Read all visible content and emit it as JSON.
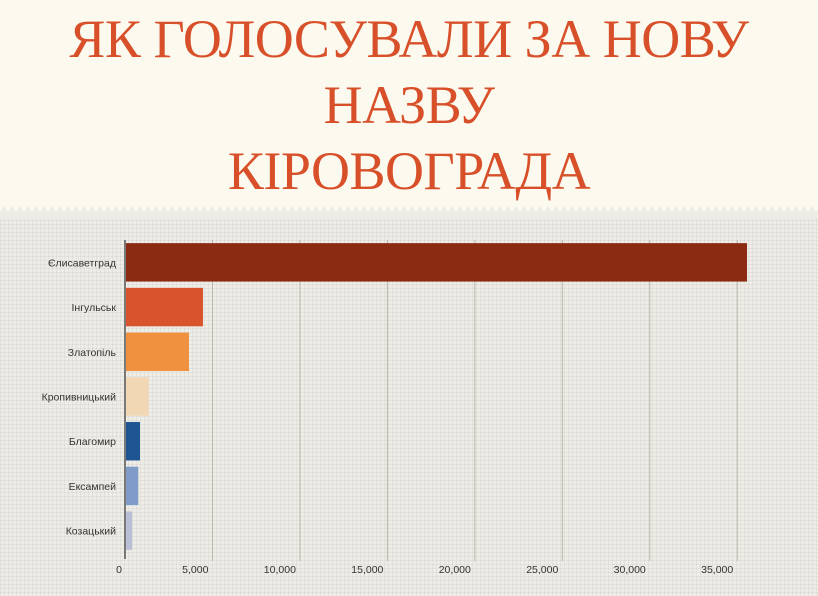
{
  "title": {
    "line1": "ЯК ГОЛОСУВАЛИ ЗА НОВУ",
    "line2": "НАЗВУ",
    "line3": "КІРОВОГРАДА"
  },
  "colors": {
    "title": "#d8502a",
    "axis": "#555555",
    "grid": "#b8b6ad"
  },
  "chart_data": {
    "type": "bar",
    "orientation": "horizontal",
    "categories": [
      "Єлисаветград",
      "Інгульськ",
      "Златопіль",
      "Кропивницький",
      "Благомир",
      "Ексампей",
      "Козацький"
    ],
    "values": [
      35500,
      4400,
      3600,
      1300,
      800,
      700,
      350
    ],
    "bar_colors": [
      "#8b2c12",
      "#d9532c",
      "#f0913f",
      "#f2d7b4",
      "#1e5593",
      "#7f9cc8",
      "#b9bfd4"
    ],
    "xlim": [
      0,
      35500
    ],
    "xticks": [
      0,
      5000,
      10000,
      15000,
      20000,
      25000,
      30000,
      35000
    ],
    "xtick_labels": [
      "0",
      "5,000",
      "10,000",
      "15,000",
      "20,000",
      "25,000",
      "30,000",
      "35,000"
    ],
    "grid": "vertical",
    "xlabel": "",
    "ylabel": ""
  }
}
